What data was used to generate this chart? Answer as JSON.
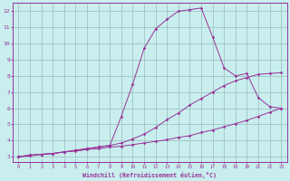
{
  "xlabel": "Windchill (Refroidissement éolien,°C)",
  "bg_color": "#c8eeee",
  "line_color": "#993399",
  "grid_color": "#99bbbb",
  "xlim": [
    -0.5,
    23.5
  ],
  "ylim": [
    2.7,
    12.5
  ],
  "xticks": [
    0,
    1,
    2,
    3,
    4,
    5,
    6,
    7,
    8,
    9,
    10,
    11,
    12,
    13,
    14,
    15,
    16,
    17,
    18,
    19,
    20,
    21,
    22,
    23
  ],
  "yticks": [
    3,
    4,
    5,
    6,
    7,
    8,
    9,
    10,
    11,
    12
  ],
  "line1_x": [
    0,
    1,
    2,
    3,
    4,
    5,
    6,
    7,
    8,
    9,
    10,
    11,
    12,
    13,
    14,
    15,
    16,
    17,
    18,
    19,
    20,
    21,
    22,
    23
  ],
  "line1_y": [
    3.0,
    3.05,
    3.15,
    3.2,
    3.3,
    3.35,
    3.45,
    3.5,
    3.6,
    3.65,
    3.75,
    3.85,
    3.95,
    4.05,
    4.2,
    4.3,
    4.5,
    4.65,
    4.85,
    5.05,
    5.25,
    5.5,
    5.75,
    6.0
  ],
  "line2_x": [
    0,
    1,
    2,
    3,
    4,
    5,
    6,
    7,
    8,
    9,
    10,
    11,
    12,
    13,
    14,
    15,
    16,
    17,
    18,
    19,
    20,
    21,
    22,
    23
  ],
  "line2_y": [
    3.0,
    3.1,
    3.15,
    3.2,
    3.3,
    3.4,
    3.5,
    3.6,
    3.7,
    3.85,
    4.1,
    4.4,
    4.8,
    5.3,
    5.7,
    6.2,
    6.6,
    7.0,
    7.4,
    7.7,
    7.9,
    8.1,
    8.15,
    8.2
  ],
  "line3_x": [
    0,
    1,
    2,
    3,
    4,
    5,
    6,
    7,
    8,
    9,
    10,
    11,
    12,
    13,
    14,
    15,
    16,
    17,
    18,
    19,
    20,
    21,
    22,
    23
  ],
  "line3_y": [
    3.0,
    3.1,
    3.15,
    3.2,
    3.3,
    3.4,
    3.5,
    3.6,
    3.7,
    5.5,
    7.5,
    9.7,
    10.9,
    11.5,
    12.0,
    12.1,
    12.2,
    10.4,
    8.5,
    8.0,
    8.15,
    6.65,
    6.1,
    6.0
  ]
}
